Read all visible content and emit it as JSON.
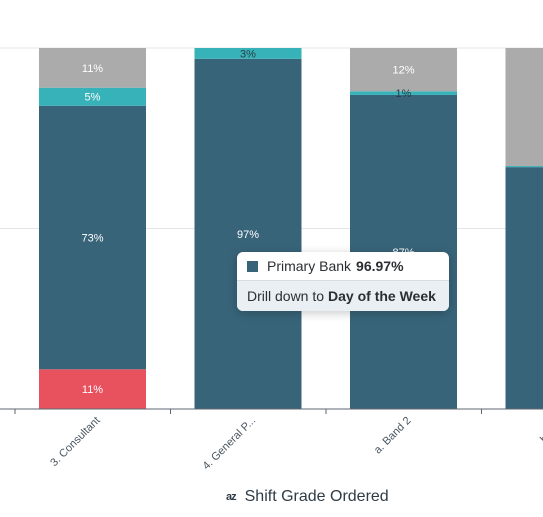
{
  "chart_data": {
    "type": "bar",
    "stacked": true,
    "normalized": true,
    "xlabel": "Shift Grade Ordered",
    "categories": [
      "3. Consultant",
      "4. General P...",
      "a. Band 2",
      "b. Ban"
    ],
    "series": [
      {
        "name": "",
        "color": "#e8525f",
        "values": [
          11,
          null,
          null,
          null
        ],
        "labels": [
          "11%",
          "",
          "",
          ""
        ]
      },
      {
        "name": "Primary Bank",
        "color": "#386479",
        "values": [
          73,
          97,
          87,
          67
        ],
        "labels": [
          "73%",
          "97%",
          "87%",
          ""
        ]
      },
      {
        "name": "",
        "color": "#37b2b8",
        "values": [
          5,
          3,
          1,
          0.3
        ],
        "labels": [
          "5%",
          "3%",
          "1%",
          ""
        ]
      },
      {
        "name": "",
        "color": "#ababab",
        "values": [
          11,
          null,
          12,
          32.7
        ],
        "labels": [
          "11%",
          "",
          "12%",
          ""
        ]
      }
    ],
    "grid": true
  },
  "tooltip": {
    "series_label": "Primary Bank",
    "value": "96.97%",
    "drill_prefix": "Drill down to",
    "drill_target": "Day of the Week"
  },
  "x_axis": {
    "title": "Shift Grade Ordered",
    "sort_icon": "sort-az-icon",
    "sort_glyph": "az"
  }
}
